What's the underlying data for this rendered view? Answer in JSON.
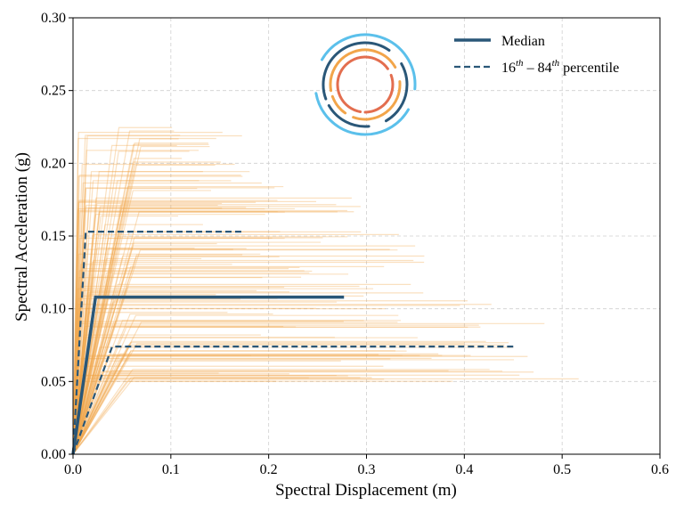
{
  "chart_data": {
    "type": "line",
    "title": "",
    "xlabel": "Spectral Displacement (m)",
    "ylabel": "Spectral Acceleration (g)",
    "xlim": [
      0.0,
      0.6
    ],
    "ylim": [
      0.0,
      0.3
    ],
    "x_ticks": [
      0.0,
      0.1,
      0.2,
      0.3,
      0.4,
      0.5,
      0.6
    ],
    "x_tick_labels": [
      "0.0",
      "0.1",
      "0.2",
      "0.3",
      "0.4",
      "0.5",
      "0.6"
    ],
    "y_ticks": [
      0.0,
      0.05,
      0.1,
      0.15,
      0.2,
      0.25,
      0.3
    ],
    "y_tick_labels": [
      "0.00",
      "0.05",
      "0.10",
      "0.15",
      "0.20",
      "0.25",
      "0.30"
    ],
    "grid": true,
    "legend_position": "top-right",
    "colors": {
      "median": "#2a5778",
      "percentile": "#2a5778",
      "samples": "#f2a54a",
      "grid": "#cfcfcf"
    },
    "series": [
      {
        "name": "Median",
        "style": "solid",
        "x": [
          0.0,
          0.023,
          0.277
        ],
        "y": [
          0.0,
          0.108,
          0.108
        ]
      },
      {
        "name": "16th percentile",
        "style": "dashed",
        "x": [
          0.0,
          0.013,
          0.172
        ],
        "y": [
          0.0,
          0.153,
          0.153
        ]
      },
      {
        "name": "84th percentile",
        "style": "dashed",
        "x": [
          0.0,
          0.04,
          0.45
        ],
        "y": [
          0.0,
          0.074,
          0.074
        ]
      }
    ],
    "samples": {
      "description": "individual capacity curves",
      "count": 150,
      "yield_sd_range": [
        0.005,
        0.07
      ],
      "yield_sa_range": [
        0.05,
        0.228
      ],
      "ultimate_sd_range": [
        0.07,
        0.6
      ]
    },
    "legend": {
      "median_label": "Median",
      "percentile_base_1": "16",
      "percentile_sup_1": "th",
      "percentile_dash": " – ",
      "percentile_base_2": "84",
      "percentile_sup_2": "th",
      "percentile_suffix": " percentile"
    },
    "logo": {
      "colors": [
        "#5bc0eb",
        "#2a5778",
        "#f2a54a",
        "#e36e4f"
      ]
    }
  }
}
